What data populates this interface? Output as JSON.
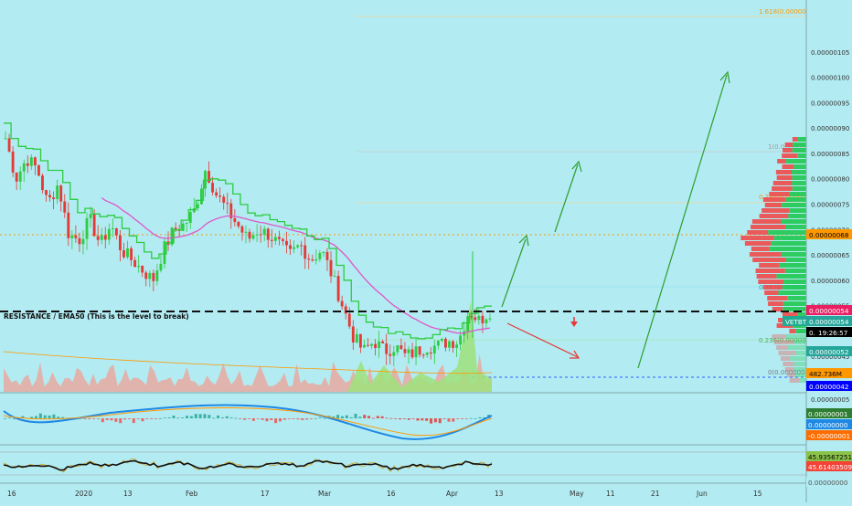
{
  "chart": {
    "resistance_label": "RESISTANCE / EMA50 (This is the level to break)",
    "price_ticks": [
      "0.00000105",
      "0.00000100",
      "0.00000095",
      "0.00000090",
      "0.00000085",
      "0.00000080",
      "0.00000075",
      "0.00000070",
      "0.00000065",
      "0.00000060",
      "0.00000055",
      "0.00000050",
      "0.00000045"
    ],
    "x_ticks": [
      "16",
      "2020",
      "13",
      "Feb",
      "17",
      "Mar",
      "16",
      "Apr",
      "13",
      "May",
      "11",
      "21",
      "Jun",
      "15"
    ],
    "price_badges": [
      {
        "text": "0.00000068",
        "bg": "#ff9800",
        "fg": "#000000"
      },
      {
        "text": "0.00000054",
        "bg": "#e91e63",
        "fg": "#ffffff"
      },
      {
        "text": "VETBTC",
        "bg": "#22ab94",
        "fg": "#ffffff"
      },
      {
        "text": "0.00000054",
        "bg": "#26a69a",
        "fg": "#ffffff"
      },
      {
        "text": "0.00000054",
        "bg": "#000000",
        "fg": "#ffffff"
      },
      {
        "text": "19:26:57",
        "bg": "#000000",
        "fg": "#ffffff"
      },
      {
        "text": "0.00000052",
        "bg": "#26a69a",
        "fg": "#ffffff"
      },
      {
        "text": "482.736M",
        "bg": "#ff9800",
        "fg": "#000000"
      },
      {
        "text": "0.00000042",
        "bg": "#0000ff",
        "fg": "#ffffff"
      }
    ],
    "fib_labels": [
      {
        "text": "1.618(0.00000107)",
        "color": "#ff9800"
      },
      {
        "text": "1(0.00000084)",
        "color": "#9e9e9e"
      },
      {
        "text": "0.786(0.00000076)",
        "color": "#ff9800"
      },
      {
        "text": "0.382(0.00000058)",
        "color": "#00bcd4"
      },
      {
        "text": "0.236(0.00000052)",
        "color": "#4caf50"
      },
      {
        "text": "0(0.00000042)",
        "color": "#787b86"
      }
    ],
    "ind1_ticks": [
      "0.00000005"
    ],
    "ind1_badges": [
      {
        "text": "0.00000001",
        "bg": "#2e7d32",
        "fg": "#ffffff"
      },
      {
        "text": "0.00000000",
        "bg": "#1e88e5",
        "fg": "#ffffff"
      },
      {
        "text": "-0.00000001",
        "bg": "#ff6d00",
        "fg": "#ffffff"
      }
    ],
    "ind2_badges": [
      {
        "text": "45.93567251",
        "bg": "#8bc34a",
        "fg": "#000000"
      },
      {
        "text": "45.61403509",
        "bg": "#f44336",
        "fg": "#ffffff"
      },
      {
        "text": "0.00000000",
        "bg": "#b2ebf2",
        "fg": "#555555"
      }
    ],
    "colors": {
      "background": "#b2ebf2",
      "up": "#2ecc40",
      "down": "#e53935",
      "ema50": "#e056c8",
      "arrow_up": "#2e9e2e",
      "arrow_down": "#e53935",
      "resistance": "#111111"
    }
  },
  "chart_data": {
    "type": "candlestick",
    "symbol": "VETBTC",
    "x_ticks": [
      "16",
      "2020",
      "13",
      "Feb",
      "17",
      "Mar",
      "16",
      "Apr",
      "13",
      "May",
      "11",
      "21",
      "Jun",
      "15"
    ],
    "ylim": [
      4e-07,
      1.08e-06
    ],
    "resistance": 5.4e-07,
    "current_price": 5.4e-07,
    "volume": 482736000,
    "price_path": [
      8.8e-07,
      8e-07,
      8.4e-07,
      8.2e-07,
      7.5e-07,
      7.9e-07,
      6.9e-07,
      6.8e-07,
      7.2e-07,
      6.7e-07,
      7.1e-07,
      6.6e-07,
      6.4e-07,
      6.2e-07,
      6e-07,
      6.6e-07,
      7e-07,
      7.1e-07,
      7.4e-07,
      8.2e-07,
      7.7e-07,
      7.4e-07,
      7.1e-07,
      6.8e-07,
      7e-07,
      6.9e-07,
      6.7e-07,
      6.5e-07,
      6.7e-07,
      6.4e-07,
      6.6e-07,
      6.1e-07,
      5.5e-07,
      4.9e-07,
      4.6e-07,
      4.8e-07,
      4.6e-07,
      4.7e-07,
      4.5e-07,
      4.6e-07,
      4.7e-07,
      4.7e-07,
      4.8e-07,
      4.8e-07,
      5.4e-07,
      5.2e-07,
      5.4e-07
    ]
  }
}
